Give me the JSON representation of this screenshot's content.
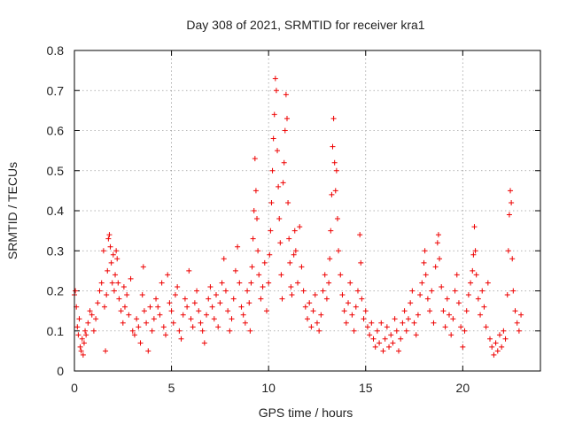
{
  "chart_data": {
    "type": "scatter",
    "title": "Day 308 of 2021, SRMTID for receiver kra1",
    "xlabel": "GPS time / hours",
    "ylabel": "SRMTID / TECUs",
    "xlim": [
      0,
      24
    ],
    "ylim": [
      0,
      0.8
    ],
    "xticks": [
      0,
      5,
      10,
      15,
      20
    ],
    "yticks": [
      0,
      0.1,
      0.2,
      0.3,
      0.4,
      0.5,
      0.6,
      0.7,
      0.8
    ],
    "xtick_labels": [
      "0",
      "5",
      "10",
      "15",
      "20"
    ],
    "ytick_labels": [
      "0",
      "0.1",
      "0.2",
      "0.3",
      "0.4",
      "0.5",
      "0.6",
      "0.7",
      "0.8"
    ],
    "grid": true,
    "marker": "+",
    "color": "#ee0000",
    "series": [
      {
        "name": "kra1",
        "points": [
          [
            0.0,
            0.19
          ],
          [
            0.05,
            0.2
          ],
          [
            0.1,
            0.16
          ],
          [
            0.15,
            0.11
          ],
          [
            0.2,
            0.09
          ],
          [
            0.25,
            0.13
          ],
          [
            0.3,
            0.06
          ],
          [
            0.35,
            0.05
          ],
          [
            0.4,
            0.08
          ],
          [
            0.45,
            0.04
          ],
          [
            0.5,
            0.07
          ],
          [
            0.55,
            0.1
          ],
          [
            0.6,
            0.09
          ],
          [
            0.7,
            0.12
          ],
          [
            0.8,
            0.15
          ],
          [
            0.9,
            0.14
          ],
          [
            1.0,
            0.1
          ],
          [
            1.1,
            0.13
          ],
          [
            1.2,
            0.17
          ],
          [
            1.3,
            0.2
          ],
          [
            1.4,
            0.22
          ],
          [
            1.5,
            0.3
          ],
          [
            1.55,
            0.16
          ],
          [
            1.6,
            0.05
          ],
          [
            1.65,
            0.19
          ],
          [
            1.7,
            0.25
          ],
          [
            1.75,
            0.33
          ],
          [
            1.8,
            0.34
          ],
          [
            1.85,
            0.31
          ],
          [
            1.9,
            0.27
          ],
          [
            1.95,
            0.22
          ],
          [
            2.0,
            0.29
          ],
          [
            2.05,
            0.2
          ],
          [
            2.1,
            0.24
          ],
          [
            2.15,
            0.3
          ],
          [
            2.2,
            0.28
          ],
          [
            2.25,
            0.22
          ],
          [
            2.3,
            0.18
          ],
          [
            2.4,
            0.15
          ],
          [
            2.5,
            0.12
          ],
          [
            2.55,
            0.21
          ],
          [
            2.6,
            0.16
          ],
          [
            2.7,
            0.19
          ],
          [
            2.8,
            0.14
          ],
          [
            2.9,
            0.23
          ],
          [
            3.0,
            0.1
          ],
          [
            3.1,
            0.09
          ],
          [
            3.2,
            0.13
          ],
          [
            3.3,
            0.11
          ],
          [
            3.4,
            0.07
          ],
          [
            3.5,
            0.19
          ],
          [
            3.55,
            0.26
          ],
          [
            3.6,
            0.15
          ],
          [
            3.7,
            0.12
          ],
          [
            3.8,
            0.05
          ],
          [
            3.9,
            0.16
          ],
          [
            4.0,
            0.1
          ],
          [
            4.1,
            0.13
          ],
          [
            4.2,
            0.18
          ],
          [
            4.3,
            0.16
          ],
          [
            4.4,
            0.14
          ],
          [
            4.5,
            0.22
          ],
          [
            4.6,
            0.11
          ],
          [
            4.7,
            0.09
          ],
          [
            4.8,
            0.24
          ],
          [
            4.9,
            0.17
          ],
          [
            5.0,
            0.15
          ],
          [
            5.1,
            0.12
          ],
          [
            5.2,
            0.19
          ],
          [
            5.3,
            0.21
          ],
          [
            5.4,
            0.1
          ],
          [
            5.5,
            0.08
          ],
          [
            5.6,
            0.14
          ],
          [
            5.7,
            0.18
          ],
          [
            5.8,
            0.16
          ],
          [
            5.9,
            0.25
          ],
          [
            6.0,
            0.13
          ],
          [
            6.1,
            0.11
          ],
          [
            6.2,
            0.17
          ],
          [
            6.3,
            0.2
          ],
          [
            6.4,
            0.15
          ],
          [
            6.5,
            0.12
          ],
          [
            6.6,
            0.1
          ],
          [
            6.7,
            0.07
          ],
          [
            6.8,
            0.14
          ],
          [
            6.9,
            0.18
          ],
          [
            7.0,
            0.21
          ],
          [
            7.1,
            0.16
          ],
          [
            7.2,
            0.13
          ],
          [
            7.3,
            0.19
          ],
          [
            7.4,
            0.11
          ],
          [
            7.5,
            0.17
          ],
          [
            7.6,
            0.22
          ],
          [
            7.7,
            0.28
          ],
          [
            7.8,
            0.2
          ],
          [
            7.9,
            0.15
          ],
          [
            8.0,
            0.1
          ],
          [
            8.1,
            0.13
          ],
          [
            8.2,
            0.18
          ],
          [
            8.3,
            0.25
          ],
          [
            8.4,
            0.31
          ],
          [
            8.5,
            0.22
          ],
          [
            8.6,
            0.16
          ],
          [
            8.7,
            0.14
          ],
          [
            8.8,
            0.12
          ],
          [
            8.9,
            0.2
          ],
          [
            9.0,
            0.17
          ],
          [
            9.05,
            0.1
          ],
          [
            9.1,
            0.22
          ],
          [
            9.15,
            0.26
          ],
          [
            9.2,
            0.33
          ],
          [
            9.25,
            0.4
          ],
          [
            9.3,
            0.53
          ],
          [
            9.35,
            0.45
          ],
          [
            9.4,
            0.38
          ],
          [
            9.45,
            0.3
          ],
          [
            9.5,
            0.24
          ],
          [
            9.6,
            0.18
          ],
          [
            9.7,
            0.21
          ],
          [
            9.8,
            0.27
          ],
          [
            9.9,
            0.15
          ],
          [
            10.0,
            0.22
          ],
          [
            10.05,
            0.29
          ],
          [
            10.1,
            0.35
          ],
          [
            10.15,
            0.42
          ],
          [
            10.2,
            0.5
          ],
          [
            10.25,
            0.58
          ],
          [
            10.3,
            0.64
          ],
          [
            10.35,
            0.73
          ],
          [
            10.4,
            0.7
          ],
          [
            10.45,
            0.55
          ],
          [
            10.5,
            0.46
          ],
          [
            10.55,
            0.38
          ],
          [
            10.6,
            0.32
          ],
          [
            10.65,
            0.24
          ],
          [
            10.7,
            0.18
          ],
          [
            10.75,
            0.47
          ],
          [
            10.8,
            0.52
          ],
          [
            10.85,
            0.6
          ],
          [
            10.9,
            0.69
          ],
          [
            10.95,
            0.63
          ],
          [
            11.0,
            0.42
          ],
          [
            11.05,
            0.33
          ],
          [
            11.1,
            0.27
          ],
          [
            11.15,
            0.21
          ],
          [
            11.2,
            0.19
          ],
          [
            11.3,
            0.29
          ],
          [
            11.35,
            0.35
          ],
          [
            11.4,
            0.3
          ],
          [
            11.5,
            0.22
          ],
          [
            11.6,
            0.36
          ],
          [
            11.7,
            0.26
          ],
          [
            11.8,
            0.2
          ],
          [
            11.9,
            0.16
          ],
          [
            12.0,
            0.13
          ],
          [
            12.1,
            0.17
          ],
          [
            12.2,
            0.11
          ],
          [
            12.3,
            0.15
          ],
          [
            12.4,
            0.19
          ],
          [
            12.5,
            0.12
          ],
          [
            12.6,
            0.1
          ],
          [
            12.7,
            0.14
          ],
          [
            12.8,
            0.2
          ],
          [
            12.9,
            0.24
          ],
          [
            13.0,
            0.18
          ],
          [
            13.1,
            0.22
          ],
          [
            13.15,
            0.28
          ],
          [
            13.2,
            0.35
          ],
          [
            13.25,
            0.44
          ],
          [
            13.3,
            0.56
          ],
          [
            13.35,
            0.63
          ],
          [
            13.4,
            0.52
          ],
          [
            13.45,
            0.45
          ],
          [
            13.5,
            0.5
          ],
          [
            13.55,
            0.38
          ],
          [
            13.6,
            0.3
          ],
          [
            13.7,
            0.24
          ],
          [
            13.8,
            0.19
          ],
          [
            13.9,
            0.15
          ],
          [
            14.0,
            0.12
          ],
          [
            14.1,
            0.17
          ],
          [
            14.2,
            0.22
          ],
          [
            14.3,
            0.14
          ],
          [
            14.4,
            0.1
          ],
          [
            14.5,
            0.16
          ],
          [
            14.6,
            0.2
          ],
          [
            14.7,
            0.34
          ],
          [
            14.75,
            0.27
          ],
          [
            14.8,
            0.18
          ],
          [
            14.9,
            0.13
          ],
          [
            15.0,
            0.15
          ],
          [
            15.1,
            0.11
          ],
          [
            15.2,
            0.09
          ],
          [
            15.3,
            0.12
          ],
          [
            15.4,
            0.08
          ],
          [
            15.5,
            0.06
          ],
          [
            15.6,
            0.1
          ],
          [
            15.7,
            0.07
          ],
          [
            15.8,
            0.12
          ],
          [
            15.9,
            0.05
          ],
          [
            16.0,
            0.08
          ],
          [
            16.1,
            0.11
          ],
          [
            16.2,
            0.06
          ],
          [
            16.3,
            0.09
          ],
          [
            16.4,
            0.07
          ],
          [
            16.5,
            0.13
          ],
          [
            16.6,
            0.1
          ],
          [
            16.7,
            0.05
          ],
          [
            16.8,
            0.08
          ],
          [
            16.9,
            0.12
          ],
          [
            17.0,
            0.15
          ],
          [
            17.1,
            0.1
          ],
          [
            17.2,
            0.13
          ],
          [
            17.3,
            0.17
          ],
          [
            17.4,
            0.2
          ],
          [
            17.5,
            0.12
          ],
          [
            17.6,
            0.09
          ],
          [
            17.7,
            0.14
          ],
          [
            17.8,
            0.19
          ],
          [
            17.9,
            0.22
          ],
          [
            18.0,
            0.27
          ],
          [
            18.05,
            0.3
          ],
          [
            18.1,
            0.24
          ],
          [
            18.2,
            0.18
          ],
          [
            18.3,
            0.15
          ],
          [
            18.4,
            0.2
          ],
          [
            18.5,
            0.12
          ],
          [
            18.6,
            0.26
          ],
          [
            18.7,
            0.32
          ],
          [
            18.75,
            0.34
          ],
          [
            18.8,
            0.28
          ],
          [
            18.9,
            0.21
          ],
          [
            19.0,
            0.15
          ],
          [
            19.1,
            0.11
          ],
          [
            19.2,
            0.18
          ],
          [
            19.3,
            0.14
          ],
          [
            19.4,
            0.09
          ],
          [
            19.5,
            0.13
          ],
          [
            19.6,
            0.2
          ],
          [
            19.7,
            0.24
          ],
          [
            19.8,
            0.17
          ],
          [
            19.9,
            0.11
          ],
          [
            20.0,
            0.06
          ],
          [
            20.1,
            0.1
          ],
          [
            20.2,
            0.15
          ],
          [
            20.3,
            0.19
          ],
          [
            20.4,
            0.22
          ],
          [
            20.5,
            0.25
          ],
          [
            20.55,
            0.29
          ],
          [
            20.6,
            0.36
          ],
          [
            20.65,
            0.3
          ],
          [
            20.7,
            0.24
          ],
          [
            20.8,
            0.18
          ],
          [
            20.9,
            0.14
          ],
          [
            21.0,
            0.2
          ],
          [
            21.1,
            0.16
          ],
          [
            21.2,
            0.11
          ],
          [
            21.3,
            0.22
          ],
          [
            21.4,
            0.08
          ],
          [
            21.5,
            0.06
          ],
          [
            21.6,
            0.04
          ],
          [
            21.7,
            0.07
          ],
          [
            21.8,
            0.05
          ],
          [
            21.9,
            0.09
          ],
          [
            22.0,
            0.06
          ],
          [
            22.1,
            0.1
          ],
          [
            22.2,
            0.08
          ],
          [
            22.3,
            0.19
          ],
          [
            22.35,
            0.3
          ],
          [
            22.4,
            0.39
          ],
          [
            22.45,
            0.45
          ],
          [
            22.5,
            0.42
          ],
          [
            22.55,
            0.28
          ],
          [
            22.6,
            0.2
          ],
          [
            22.7,
            0.15
          ],
          [
            22.8,
            0.12
          ],
          [
            22.9,
            0.1
          ],
          [
            23.0,
            0.14
          ]
        ]
      }
    ]
  }
}
